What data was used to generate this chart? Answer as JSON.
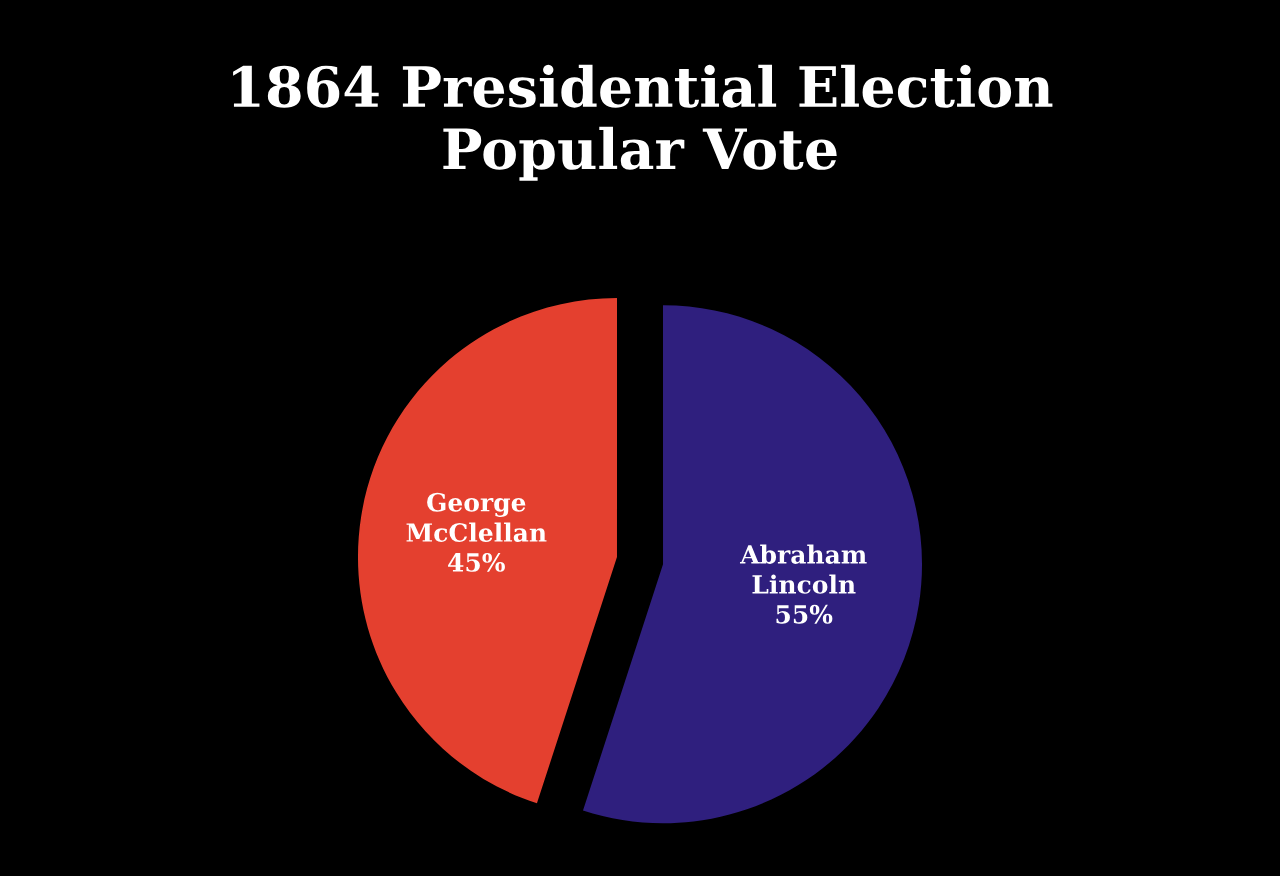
{
  "chart_data": {
    "type": "pie",
    "title": "1864 Presidential Election\nPopular Vote",
    "categories": [
      "Abraham Lincoln",
      "George McClellan"
    ],
    "values": [
      55,
      45
    ],
    "value_labels": [
      "55%",
      "45%"
    ],
    "colors": [
      "#2f1f7e",
      "#e4402f"
    ],
    "legend": false
  }
}
